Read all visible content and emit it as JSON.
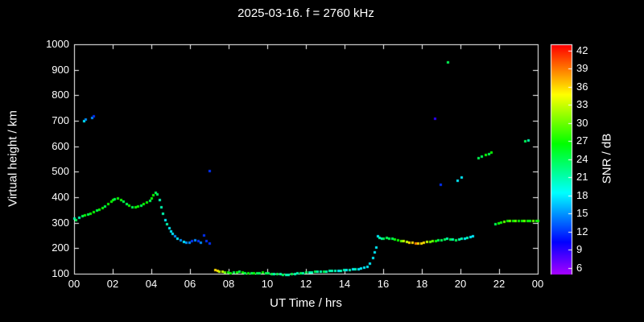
{
  "title": "2025-03-16. f = 2760 kHz",
  "chart_data": {
    "type": "scatter",
    "title": "2025-03-16. f = 2760 kHz",
    "xlabel": "UT Time / hrs",
    "ylabel": "Virtual height / km",
    "xlim": [
      0,
      24
    ],
    "ylim": [
      100,
      1000
    ],
    "grid": false,
    "x_tick_hours": [
      0,
      2,
      4,
      6,
      8,
      10,
      12,
      14,
      16,
      18,
      20,
      22,
      24
    ],
    "x_tick_labels": [
      "00",
      "02",
      "04",
      "06",
      "08",
      "10",
      "12",
      "14",
      "16",
      "18",
      "20",
      "22",
      "00"
    ],
    "y_ticks": [
      100,
      200,
      300,
      400,
      500,
      600,
      700,
      800,
      900,
      1000
    ],
    "colorbar": {
      "label": "SNR / dB",
      "min": 5,
      "max": 43,
      "ticks": [
        6,
        9,
        12,
        15,
        18,
        21,
        24,
        27,
        30,
        33,
        36,
        39,
        42
      ],
      "position": "right"
    },
    "points_format": [
      "ut_hours",
      "virtual_height_km",
      "snr_db"
    ],
    "points": [
      [
        0.0,
        318,
        21
      ],
      [
        0.1,
        312,
        24
      ],
      [
        0.25,
        320,
        21
      ],
      [
        0.4,
        328,
        24
      ],
      [
        0.55,
        332,
        27
      ],
      [
        0.7,
        334,
        24
      ],
      [
        0.85,
        338,
        27
      ],
      [
        1.0,
        344,
        27
      ],
      [
        1.15,
        348,
        24
      ],
      [
        1.3,
        352,
        27
      ],
      [
        1.45,
        358,
        27
      ],
      [
        1.6,
        366,
        24
      ],
      [
        1.75,
        374,
        27
      ],
      [
        1.9,
        384,
        27
      ],
      [
        2.0,
        390,
        27
      ],
      [
        2.1,
        394,
        24
      ],
      [
        2.25,
        396,
        27
      ],
      [
        2.4,
        392,
        27
      ],
      [
        2.55,
        384,
        24
      ],
      [
        2.7,
        376,
        24
      ],
      [
        2.85,
        368,
        27
      ],
      [
        3.0,
        362,
        24
      ],
      [
        3.15,
        362,
        27
      ],
      [
        3.3,
        366,
        27
      ],
      [
        3.45,
        370,
        24
      ],
      [
        3.6,
        374,
        27
      ],
      [
        3.75,
        380,
        27
      ],
      [
        3.9,
        388,
        24
      ],
      [
        4.0,
        396,
        27
      ],
      [
        4.1,
        408,
        27
      ],
      [
        4.2,
        420,
        24
      ],
      [
        4.3,
        414,
        24
      ],
      [
        4.4,
        392,
        21
      ],
      [
        4.5,
        362,
        21
      ],
      [
        4.6,
        336,
        21
      ],
      [
        4.7,
        312,
        18
      ],
      [
        4.8,
        296,
        21
      ],
      [
        4.9,
        280,
        18
      ],
      [
        5.0,
        268,
        18
      ],
      [
        5.1,
        257,
        18
      ],
      [
        5.2,
        248,
        15
      ],
      [
        5.35,
        240,
        18
      ],
      [
        5.5,
        233,
        15
      ],
      [
        5.65,
        227,
        18
      ],
      [
        5.8,
        222,
        15
      ],
      [
        5.95,
        224,
        15
      ],
      [
        6.1,
        229,
        12
      ],
      [
        6.25,
        233,
        15
      ],
      [
        6.4,
        228,
        12
      ],
      [
        6.55,
        224,
        15
      ],
      [
        6.7,
        253,
        12
      ],
      [
        6.85,
        230,
        12
      ],
      [
        7.0,
        219,
        12
      ],
      [
        0.5,
        700,
        18
      ],
      [
        0.6,
        706,
        15
      ],
      [
        0.9,
        714,
        15
      ],
      [
        1.0,
        720,
        12
      ],
      [
        7.0,
        505,
        12
      ],
      [
        7.3,
        117,
        36
      ],
      [
        7.4,
        113,
        36
      ],
      [
        7.5,
        110,
        33
      ],
      [
        7.65,
        108,
        33
      ],
      [
        7.8,
        106,
        30
      ],
      [
        7.95,
        105,
        27
      ],
      [
        8.1,
        104,
        27
      ],
      [
        8.25,
        105,
        24
      ],
      [
        8.4,
        107,
        27
      ],
      [
        8.55,
        108,
        24
      ],
      [
        8.7,
        106,
        27
      ],
      [
        8.85,
        104,
        24
      ],
      [
        9.0,
        103,
        27
      ],
      [
        9.15,
        102,
        24
      ],
      [
        9.3,
        102,
        27
      ],
      [
        9.45,
        103,
        24
      ],
      [
        9.6,
        104,
        24
      ],
      [
        9.75,
        105,
        27
      ],
      [
        9.9,
        103,
        24
      ],
      [
        10.05,
        102,
        24
      ],
      [
        10.2,
        101,
        24
      ],
      [
        10.35,
        100,
        21
      ],
      [
        10.5,
        100,
        24
      ],
      [
        10.65,
        99,
        21
      ],
      [
        10.8,
        98,
        24
      ],
      [
        10.95,
        97,
        21
      ],
      [
        11.1,
        98,
        21
      ],
      [
        11.25,
        99,
        24
      ],
      [
        11.4,
        100,
        21
      ],
      [
        11.55,
        102,
        21
      ],
      [
        11.7,
        103,
        24
      ],
      [
        11.85,
        104,
        21
      ],
      [
        12.0,
        105,
        24
      ],
      [
        12.15,
        106,
        21
      ],
      [
        12.3,
        107,
        21
      ],
      [
        12.45,
        108,
        24
      ],
      [
        12.6,
        109,
        21
      ],
      [
        12.75,
        110,
        21
      ],
      [
        12.9,
        110,
        24
      ],
      [
        13.05,
        111,
        21
      ],
      [
        13.2,
        112,
        21
      ],
      [
        13.35,
        112,
        21
      ],
      [
        13.5,
        113,
        21
      ],
      [
        13.65,
        114,
        18
      ],
      [
        13.8,
        114,
        21
      ],
      [
        13.95,
        115,
        21
      ],
      [
        14.1,
        116,
        18
      ],
      [
        14.25,
        117,
        21
      ],
      [
        14.4,
        118,
        18
      ],
      [
        14.55,
        118,
        21
      ],
      [
        14.7,
        120,
        18
      ],
      [
        14.85,
        121,
        18
      ],
      [
        15.0,
        124,
        18
      ],
      [
        15.15,
        130,
        18
      ],
      [
        15.3,
        142,
        18
      ],
      [
        15.45,
        163,
        18
      ],
      [
        15.55,
        186,
        18
      ],
      [
        15.62,
        203,
        18
      ],
      [
        15.7,
        247,
        18
      ],
      [
        15.8,
        241,
        21
      ],
      [
        15.9,
        238,
        21
      ],
      [
        16.0,
        240,
        24
      ],
      [
        16.15,
        241,
        24
      ],
      [
        16.3,
        240,
        24
      ],
      [
        16.45,
        238,
        24
      ],
      [
        16.6,
        236,
        27
      ],
      [
        16.75,
        234,
        27
      ],
      [
        16.9,
        231,
        30
      ],
      [
        17.05,
        228,
        33
      ],
      [
        17.2,
        226,
        33
      ],
      [
        17.35,
        224,
        36
      ],
      [
        17.5,
        222,
        36
      ],
      [
        17.65,
        220,
        39
      ],
      [
        17.8,
        220,
        36
      ],
      [
        17.95,
        221,
        36
      ],
      [
        18.1,
        223,
        36
      ],
      [
        18.25,
        225,
        33
      ],
      [
        18.4,
        227,
        30
      ],
      [
        18.55,
        229,
        30
      ],
      [
        18.7,
        231,
        27
      ],
      [
        18.85,
        232,
        24
      ],
      [
        19.0,
        234,
        24
      ],
      [
        19.15,
        236,
        24
      ],
      [
        19.3,
        238,
        21
      ],
      [
        19.45,
        237,
        24
      ],
      [
        19.6,
        235,
        21
      ],
      [
        19.75,
        234,
        24
      ],
      [
        19.9,
        236,
        21
      ],
      [
        20.05,
        238,
        21
      ],
      [
        20.2,
        240,
        18
      ],
      [
        20.35,
        242,
        21
      ],
      [
        20.5,
        245,
        18
      ],
      [
        20.62,
        248,
        18
      ],
      [
        18.65,
        710,
        9
      ],
      [
        19.35,
        930,
        24
      ],
      [
        18.95,
        452,
        12
      ],
      [
        19.85,
        465,
        18
      ],
      [
        20.05,
        478,
        18
      ],
      [
        20.9,
        556,
        24
      ],
      [
        21.1,
        562,
        24
      ],
      [
        21.3,
        566,
        27
      ],
      [
        21.45,
        572,
        24
      ],
      [
        21.6,
        578,
        27
      ],
      [
        21.8,
        297,
        24
      ],
      [
        21.95,
        300,
        27
      ],
      [
        22.1,
        303,
        27
      ],
      [
        22.25,
        305,
        30
      ],
      [
        22.4,
        307,
        27
      ],
      [
        22.55,
        308,
        30
      ],
      [
        22.7,
        309,
        27
      ],
      [
        22.85,
        310,
        30
      ],
      [
        23.0,
        309,
        27
      ],
      [
        23.15,
        308,
        27
      ],
      [
        23.3,
        309,
        30
      ],
      [
        23.45,
        308,
        27
      ],
      [
        23.6,
        309,
        27
      ],
      [
        23.75,
        308,
        30
      ],
      [
        23.9,
        309,
        27
      ],
      [
        24.0,
        310,
        27
      ],
      [
        23.35,
        620,
        24
      ],
      [
        23.5,
        624,
        21
      ]
    ]
  }
}
